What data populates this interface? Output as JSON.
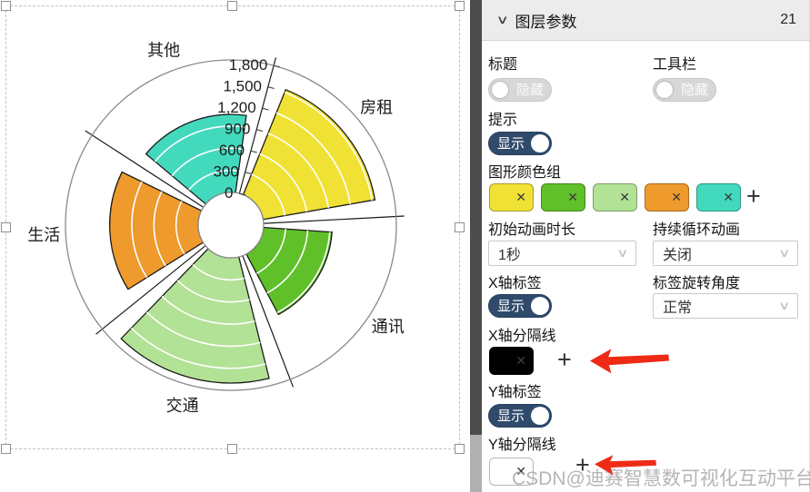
{
  "chart_data": {
    "type": "bar",
    "coordinate": "polar-rose",
    "title": "",
    "categories": [
      "房租",
      "通讯",
      "交通",
      "生活",
      "其他"
    ],
    "values": [
      1540,
      930,
      1700,
      1200,
      1060
    ],
    "colors": [
      "#f0e135",
      "#5fc02a",
      "#b2e295",
      "#ee9a2c",
      "#43d9bd"
    ],
    "radial_axis": {
      "min": 0,
      "max": 1800,
      "interval": 300,
      "tick_labels": [
        "0",
        "300",
        "600",
        "900",
        "1,200",
        "1,500",
        "1,800"
      ],
      "axis_angle_deg": 75
    },
    "sector_span_deg": 72,
    "sector_padding_deg": 7,
    "start_boundary_deg": 75,
    "clockwise": true,
    "grid": "white concentric arcs inside sectors, gray outer circle, black sector split lines",
    "legend_position": "none"
  },
  "panel": {
    "header": {
      "collapse_icon": "∨",
      "title": "图层参数",
      "count": "21"
    },
    "title_section": {
      "label": "标题",
      "toggle": "隐藏",
      "state": "off"
    },
    "toolbar_section": {
      "label": "工具栏",
      "toggle": "隐藏",
      "state": "off"
    },
    "tooltip_section": {
      "label": "提示",
      "toggle": "显示",
      "state": "on"
    },
    "color_group": {
      "label": "图形颜色组",
      "colors": [
        "#f0e135",
        "#5fc02a",
        "#b2e295",
        "#ee9a2c",
        "#43d9bd"
      ],
      "remove_icon": "✕",
      "add_icon": "+"
    },
    "anim_duration": {
      "label": "初始动画时长",
      "value": "1秒"
    },
    "loop_anim": {
      "label": "持续循环动画",
      "value": "关闭"
    },
    "x_axis_label": {
      "label": "X轴标签",
      "toggle": "显示",
      "state": "on"
    },
    "label_rotation": {
      "label": "标签旋转角度",
      "value": "正常"
    },
    "x_split_line": {
      "label": "X轴分隔线",
      "color": "#000000",
      "remove_icon": "✕",
      "add_icon": "+"
    },
    "y_axis_label": {
      "label": "Y轴标签",
      "toggle": "显示",
      "state": "on"
    },
    "y_split_line": {
      "label": "Y轴分隔线",
      "color": "#ffffff",
      "remove_icon": "✕",
      "add_icon": "+"
    },
    "icons": {
      "chevron_down": "∨"
    }
  },
  "watermark": "CSDN@迪赛智慧数可视化互动平台"
}
